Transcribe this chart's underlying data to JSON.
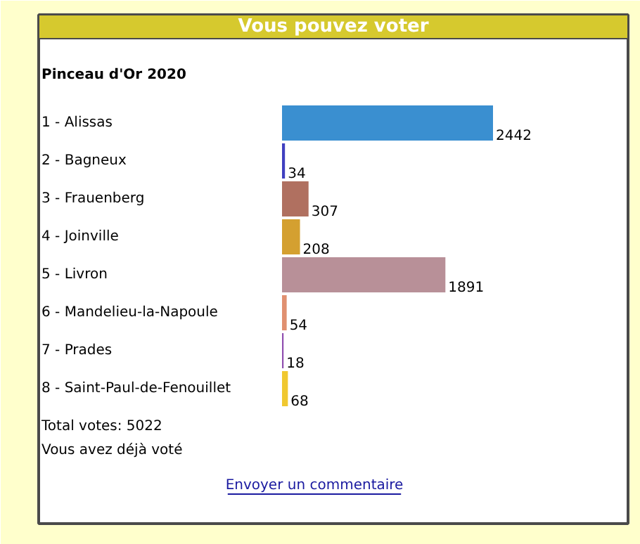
{
  "chart_data": {
    "type": "bar",
    "orientation": "horizontal",
    "title": "Vous pouvez voter",
    "subtitle": "Pinceau d'Or 2020",
    "categories": [
      "1 - Alissas",
      "2 - Bagneux",
      "3 - Frauenberg",
      "4 - Joinville",
      "5 - Livron",
      "6 - Mandelieu-la-Napoule",
      "7 - Prades",
      "8 - Saint-Paul-de-Fenouillet"
    ],
    "values": [
      2442,
      34,
      307,
      208,
      1891,
      54,
      18,
      68
    ],
    "colors": [
      "#3a8fd0",
      "#4040c0",
      "#b07060",
      "#d4a030",
      "#b89098",
      "#e09070",
      "#9050b0",
      "#f0c830"
    ],
    "data_labels": true,
    "tick_labels": "y",
    "annotations": [
      "Total votes: 5022",
      "Vous avez déjà voté",
      "Envoyer un commentaire"
    ]
  }
}
